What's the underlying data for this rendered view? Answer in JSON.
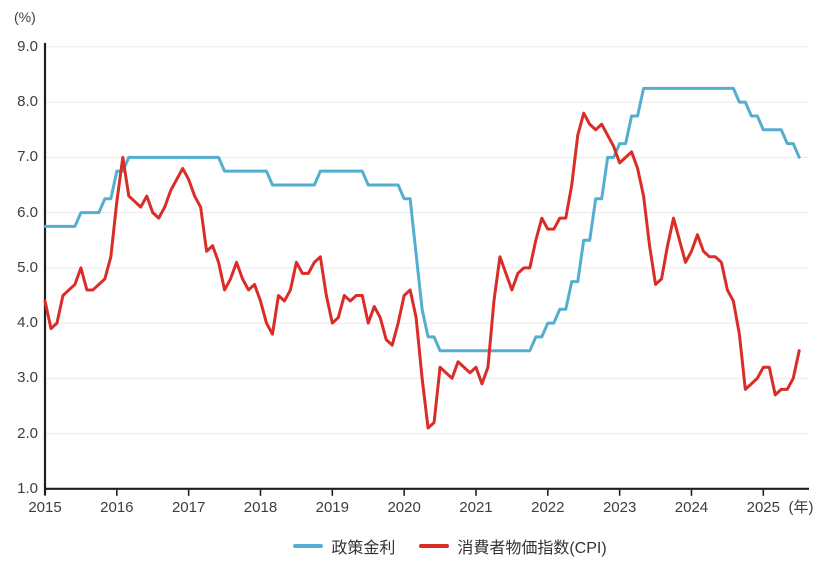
{
  "chart": {
    "y_unit_label": "(%)",
    "x_unit_label": "(年)"
  },
  "chart_data": {
    "type": "line",
    "title": "",
    "xlabel": "(年)",
    "ylabel": "(%)",
    "x_start_year": 2015,
    "x_frequency": "monthly",
    "x_tick_labels": [
      "2015",
      "2016",
      "2017",
      "2018",
      "2019",
      "2020",
      "2021",
      "2022",
      "2023",
      "2024",
      "2025"
    ],
    "y_ticks": [
      1.0,
      2.0,
      3.0,
      4.0,
      5.0,
      6.0,
      7.0,
      8.0,
      9.0
    ],
    "y_tick_labels": [
      "1.0",
      "2.0",
      "3.0",
      "4.0",
      "5.0",
      "6.0",
      "7.0",
      "8.0",
      "9.0"
    ],
    "ylim": [
      1.0,
      9.0
    ],
    "grid": true,
    "legend_position": "bottom",
    "colors": {
      "axis": "#1f1f1f",
      "gridline": "#eaeaea",
      "tick_text": "#3d3d3d"
    },
    "series": [
      {
        "name": "政策金利",
        "color": "#54aecf",
        "values": [
          5.75,
          5.75,
          5.75,
          5.75,
          5.75,
          5.75,
          6.0,
          6.0,
          6.0,
          6.0,
          6.25,
          6.25,
          6.75,
          6.75,
          7.0,
          7.0,
          7.0,
          7.0,
          7.0,
          7.0,
          7.0,
          7.0,
          7.0,
          7.0,
          7.0,
          7.0,
          7.0,
          7.0,
          7.0,
          7.0,
          6.75,
          6.75,
          6.75,
          6.75,
          6.75,
          6.75,
          6.75,
          6.75,
          6.5,
          6.5,
          6.5,
          6.5,
          6.5,
          6.5,
          6.5,
          6.5,
          6.75,
          6.75,
          6.75,
          6.75,
          6.75,
          6.75,
          6.75,
          6.75,
          6.5,
          6.5,
          6.5,
          6.5,
          6.5,
          6.5,
          6.25,
          6.25,
          5.25,
          4.25,
          3.75,
          3.75,
          3.5,
          3.5,
          3.5,
          3.5,
          3.5,
          3.5,
          3.5,
          3.5,
          3.5,
          3.5,
          3.5,
          3.5,
          3.5,
          3.5,
          3.5,
          3.5,
          3.75,
          3.75,
          4.0,
          4.0,
          4.25,
          4.25,
          4.75,
          4.75,
          5.5,
          5.5,
          6.25,
          6.25,
          7.0,
          7.0,
          7.25,
          7.25,
          7.75,
          7.75,
          8.25,
          8.25,
          8.25,
          8.25,
          8.25,
          8.25,
          8.25,
          8.25,
          8.25,
          8.25,
          8.25,
          8.25,
          8.25,
          8.25,
          8.25,
          8.25,
          8.0,
          8.0,
          7.75,
          7.75,
          7.5,
          7.5,
          7.5,
          7.5,
          7.25,
          7.25,
          7.0
        ]
      },
      {
        "name": "消費者物価指数(CPI)",
        "color": "#db2d28",
        "values": [
          4.4,
          3.9,
          4.0,
          4.5,
          4.6,
          4.7,
          5.0,
          4.6,
          4.6,
          4.7,
          4.8,
          5.2,
          6.2,
          7.0,
          6.3,
          6.2,
          6.1,
          6.3,
          6.0,
          5.9,
          6.1,
          6.4,
          6.6,
          6.8,
          6.6,
          6.3,
          6.1,
          5.3,
          5.4,
          5.1,
          4.6,
          4.8,
          5.1,
          4.8,
          4.6,
          4.7,
          4.4,
          4.0,
          3.8,
          4.5,
          4.4,
          4.6,
          5.1,
          4.9,
          4.9,
          5.1,
          5.2,
          4.5,
          4.0,
          4.1,
          4.5,
          4.4,
          4.5,
          4.5,
          4.0,
          4.3,
          4.1,
          3.7,
          3.6,
          4.0,
          4.5,
          4.6,
          4.1,
          3.0,
          2.1,
          2.2,
          3.2,
          3.1,
          3.0,
          3.3,
          3.2,
          3.1,
          3.2,
          2.9,
          3.2,
          4.4,
          5.2,
          4.9,
          4.6,
          4.9,
          5.0,
          5.0,
          5.5,
          5.9,
          5.7,
          5.7,
          5.9,
          5.9,
          6.5,
          7.4,
          7.8,
          7.6,
          7.5,
          7.6,
          7.4,
          7.2,
          6.9,
          7.0,
          7.1,
          6.8,
          6.3,
          5.4,
          4.7,
          4.8,
          5.4,
          5.9,
          5.5,
          5.1,
          5.3,
          5.6,
          5.3,
          5.2,
          5.2,
          5.1,
          4.6,
          4.4,
          3.8,
          2.8,
          2.9,
          3.0,
          3.2,
          3.2,
          2.7,
          2.8,
          2.8,
          3.0,
          3.5
        ]
      }
    ]
  }
}
